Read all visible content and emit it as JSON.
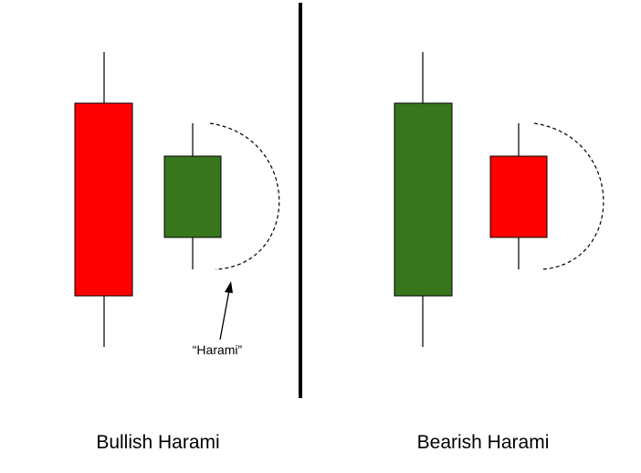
{
  "colors": {
    "bullish_candle": "#38761d",
    "bearish_candle": "#ff0000",
    "outline": "#000000"
  },
  "left_pattern": {
    "label": "Bullish Harami",
    "annotation": "“Harami”"
  },
  "right_pattern": {
    "label": "Bearish Harami"
  }
}
